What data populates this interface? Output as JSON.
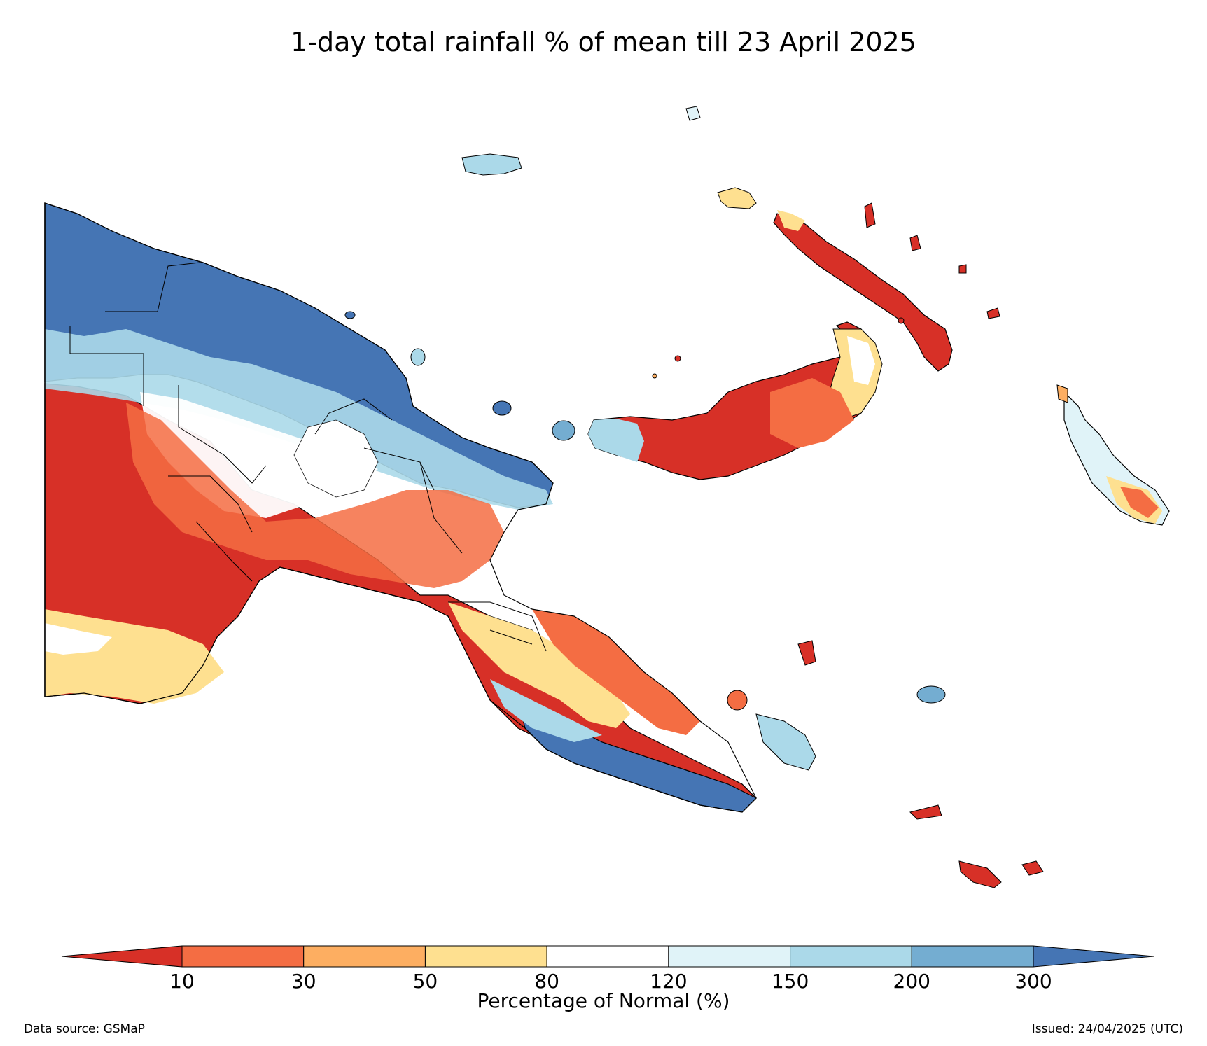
{
  "title": "1-day total rainfall % of mean till 23 April 2025",
  "colorbar": {
    "label": "Percentage of Normal (%)",
    "ticks": [
      "10",
      "30",
      "50",
      "80",
      "120",
      "150",
      "200",
      "300"
    ],
    "colors": [
      "#d73027",
      "#f46d43",
      "#fdae61",
      "#fee090",
      "#ffffff",
      "#e0f3f8",
      "#abd9e9",
      "#74add1",
      "#4575b4"
    ],
    "extend": "both"
  },
  "footer": {
    "source": "Data source: GSMaP",
    "issued": "Issued: 24/04/2025 (UTC)"
  },
  "regions": {
    "northwest_mainland": "#4575b4",
    "southwest_mainland": "#d73027",
    "new_britain": "#d73027",
    "new_ireland": "#d73027",
    "bougainville": "#fdae61",
    "southeast_tail": "#4575b4",
    "manus": "#abd9e9"
  }
}
